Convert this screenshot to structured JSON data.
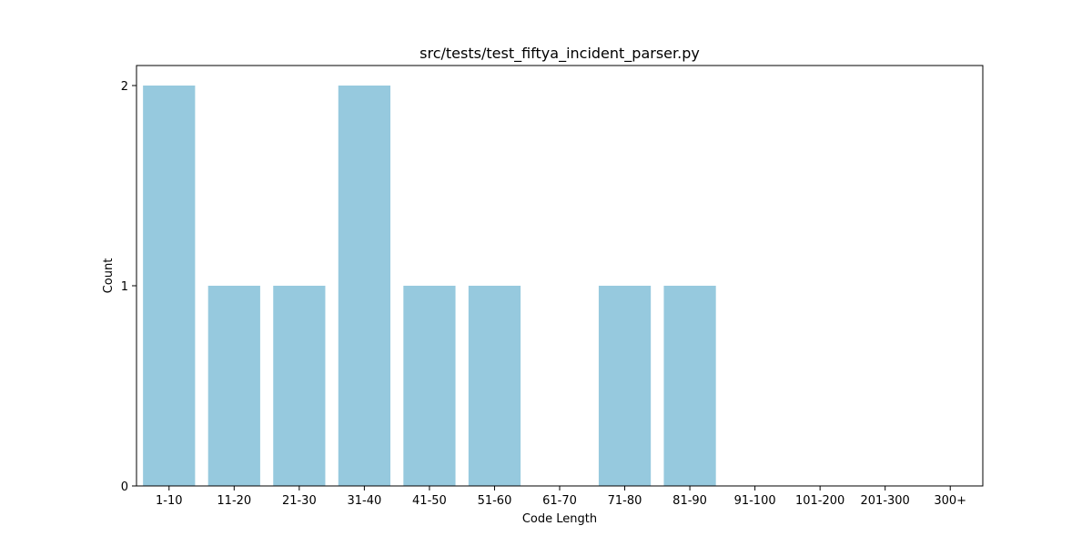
{
  "chart_data": {
    "type": "bar",
    "title": "src/tests/test_fiftya_incident_parser.py",
    "xlabel": "Code Length",
    "ylabel": "Count",
    "categories": [
      "1-10",
      "11-20",
      "21-30",
      "31-40",
      "41-50",
      "51-60",
      "61-70",
      "71-80",
      "81-90",
      "91-100",
      "101-200",
      "201-300",
      "300+"
    ],
    "values": [
      2,
      1,
      1,
      2,
      1,
      1,
      0,
      1,
      1,
      0,
      0,
      0,
      0
    ],
    "ylim": [
      0,
      2.1
    ],
    "yticks": [
      "0",
      "1",
      "2"
    ],
    "grid": false,
    "bar_color": "#96c9de"
  }
}
